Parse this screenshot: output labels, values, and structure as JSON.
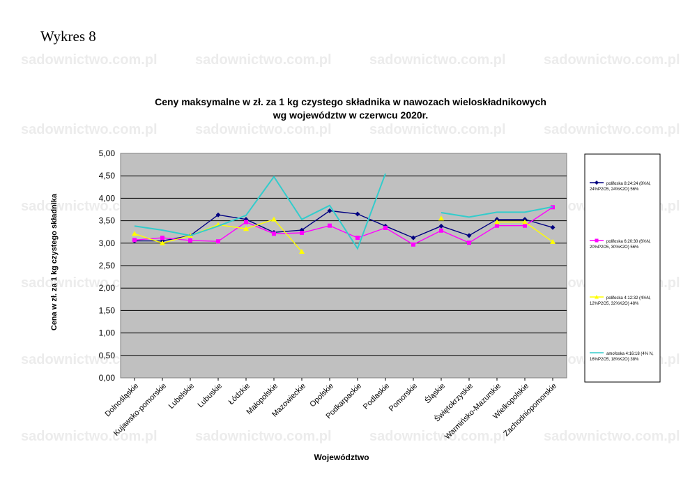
{
  "page": {
    "heading": "Wykres 8",
    "watermark": "sadownictwo.com.pl"
  },
  "chart_data": {
    "type": "line",
    "title": "Ceny maksymalne  w zł. za 1 kg czystego składnika w nawozach wieloskładnikowych",
    "subtitle": "wg województw w czerwcu 2020r.",
    "xlabel": "Województwo",
    "ylabel": "Cena w zł. za 1 kg czystego składnika",
    "ylim": [
      0,
      5
    ],
    "yticks": [
      "0,00",
      "0,50",
      "1,00",
      "1,50",
      "2,00",
      "2,50",
      "3,00",
      "3,50",
      "4,00",
      "4,50",
      "5,00"
    ],
    "grid": true,
    "legend": "right",
    "plot_background": "#c0c0c0",
    "categories": [
      "Dolnośląskie",
      "Kujawsko-pomorskie",
      "Lubelskie",
      "Lubuskie",
      "Łódzkie",
      "Małopolskie",
      "Mazowieckie",
      "Opolskie",
      "Podkarpackie",
      "Podlaskie",
      "Pomorskie",
      "Śląskie",
      "Świętokrzyskie",
      "Warmińsko-Mazurskie",
      "Wielkopolskie",
      "Zachodniopomorskie"
    ],
    "series": [
      {
        "name": "polifoska 8:24:24 (8%N, 24%P2O5, 24%K2O) 56%",
        "color": "#000080",
        "marker": "diamond",
        "values": [
          3.05,
          3.05,
          3.17,
          3.63,
          3.53,
          3.24,
          3.29,
          3.72,
          3.65,
          3.38,
          3.12,
          3.38,
          3.17,
          3.53,
          3.53,
          3.35
        ]
      },
      {
        "name": "polifoska 6:20:30 (6%N, 20%P2O5, 30%K2O) 56%",
        "color": "#ff00ff",
        "marker": "square",
        "values": [
          3.07,
          3.12,
          3.06,
          3.04,
          3.47,
          3.21,
          3.23,
          3.39,
          3.12,
          3.34,
          2.97,
          3.28,
          3.01,
          3.39,
          3.39,
          3.8
        ]
      },
      {
        "name": "polifoska 4:12:32 (4%N, 12%P2O5, 32%K2O) 48%",
        "color": "#ffff00",
        "marker": "triangle",
        "values": [
          3.21,
          3.0,
          3.17,
          3.41,
          3.32,
          3.53,
          2.81,
          null,
          null,
          null,
          null,
          3.55,
          null,
          3.47,
          3.47,
          3.03
        ]
      },
      {
        "name": "amofoska 4:16:18 (4% N, 16%P2O5, 18%K2O) 38%",
        "color": "#33cccc",
        "marker": "none",
        "values": [
          3.38,
          3.29,
          3.17,
          3.38,
          3.62,
          4.48,
          3.53,
          3.84,
          2.88,
          4.55,
          null,
          3.68,
          3.58,
          3.69,
          3.69,
          3.81
        ]
      }
    ]
  }
}
